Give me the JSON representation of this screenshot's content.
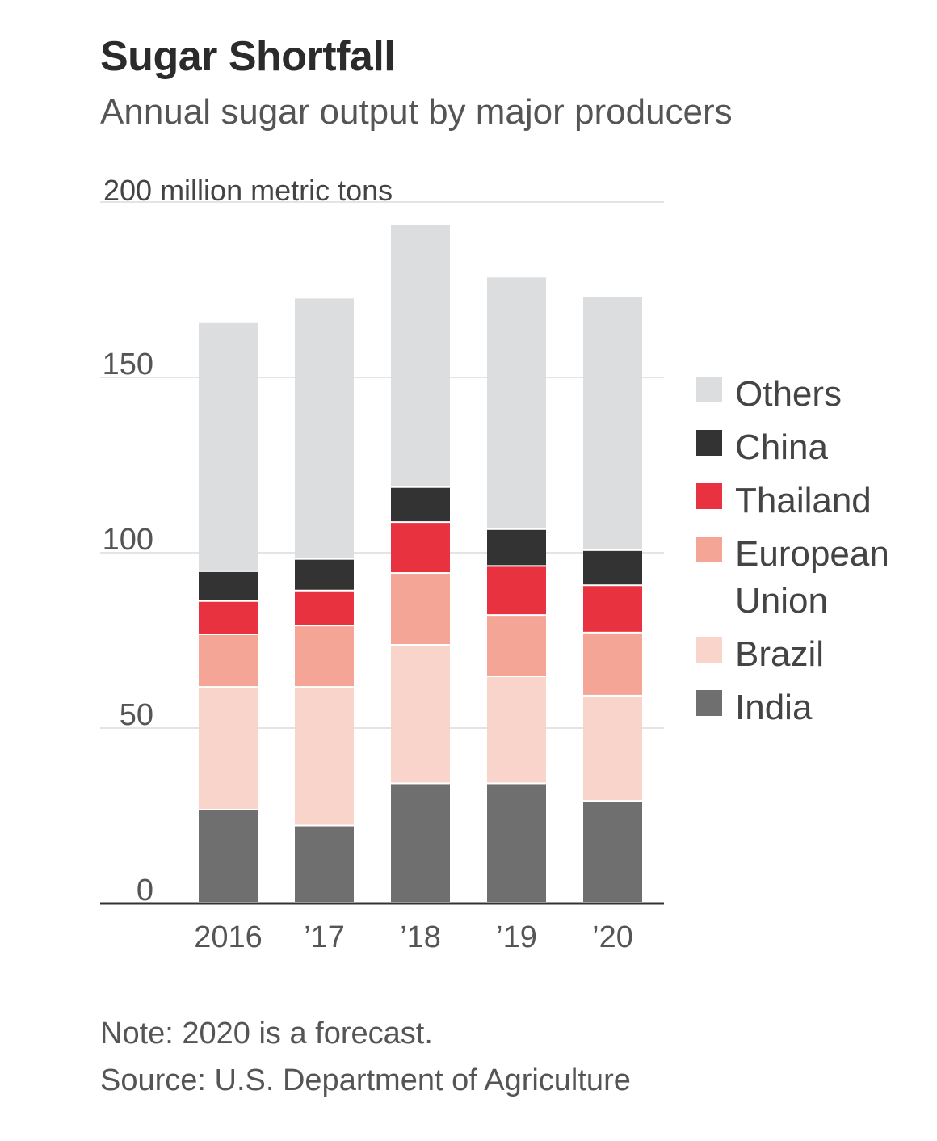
{
  "chart_data": {
    "type": "bar",
    "stacked": true,
    "title": "Sugar Shortfall",
    "subtitle": "Annual sugar output by major producers",
    "unit_label": "200 million metric tons",
    "categories": [
      "2016",
      "’17",
      "’18",
      "’19",
      "’20"
    ],
    "series": [
      {
        "name": "India",
        "color": "#6f6f6f",
        "values": [
          26.5,
          22,
          34,
          34,
          29
        ]
      },
      {
        "name": "Brazil",
        "color": "#f9d4cb",
        "values": [
          35,
          39.5,
          39.5,
          30.5,
          30
        ]
      },
      {
        "name": "European Union",
        "color": "#f4a596",
        "values": [
          15,
          17.5,
          20.5,
          17.5,
          18
        ]
      },
      {
        "name": "Thailand",
        "color": "#e8323f",
        "values": [
          9.5,
          10,
          14.5,
          14,
          13.5
        ]
      },
      {
        "name": "China",
        "color": "#333333",
        "values": [
          8.5,
          9,
          10,
          10.5,
          10
        ]
      },
      {
        "name": "Others",
        "color": "#dcdddf",
        "values": [
          71,
          74.5,
          75,
          72,
          72.5
        ]
      }
    ],
    "ylim": [
      0,
      200
    ],
    "yticks": [
      0,
      50,
      100,
      150,
      200
    ],
    "ytick_labels": [
      "0",
      "50",
      "100",
      "150",
      "200"
    ],
    "legend": {
      "placement": "right",
      "order": [
        "Others",
        "China",
        "Thailand",
        "European Union",
        "Brazil",
        "India"
      ],
      "items": [
        {
          "series": "Others",
          "lines": [
            "Others"
          ]
        },
        {
          "series": "China",
          "lines": [
            "China"
          ]
        },
        {
          "series": "Thailand",
          "lines": [
            "Thailand"
          ]
        },
        {
          "series": "European Union",
          "lines": [
            "European",
            "Union"
          ]
        },
        {
          "series": "Brazil",
          "lines": [
            "Brazil"
          ]
        },
        {
          "series": "India",
          "lines": [
            "India"
          ]
        }
      ]
    },
    "grid": true
  },
  "note": "Note: 2020 is a forecast.",
  "source": "Source: U.S. Department of Agriculture"
}
